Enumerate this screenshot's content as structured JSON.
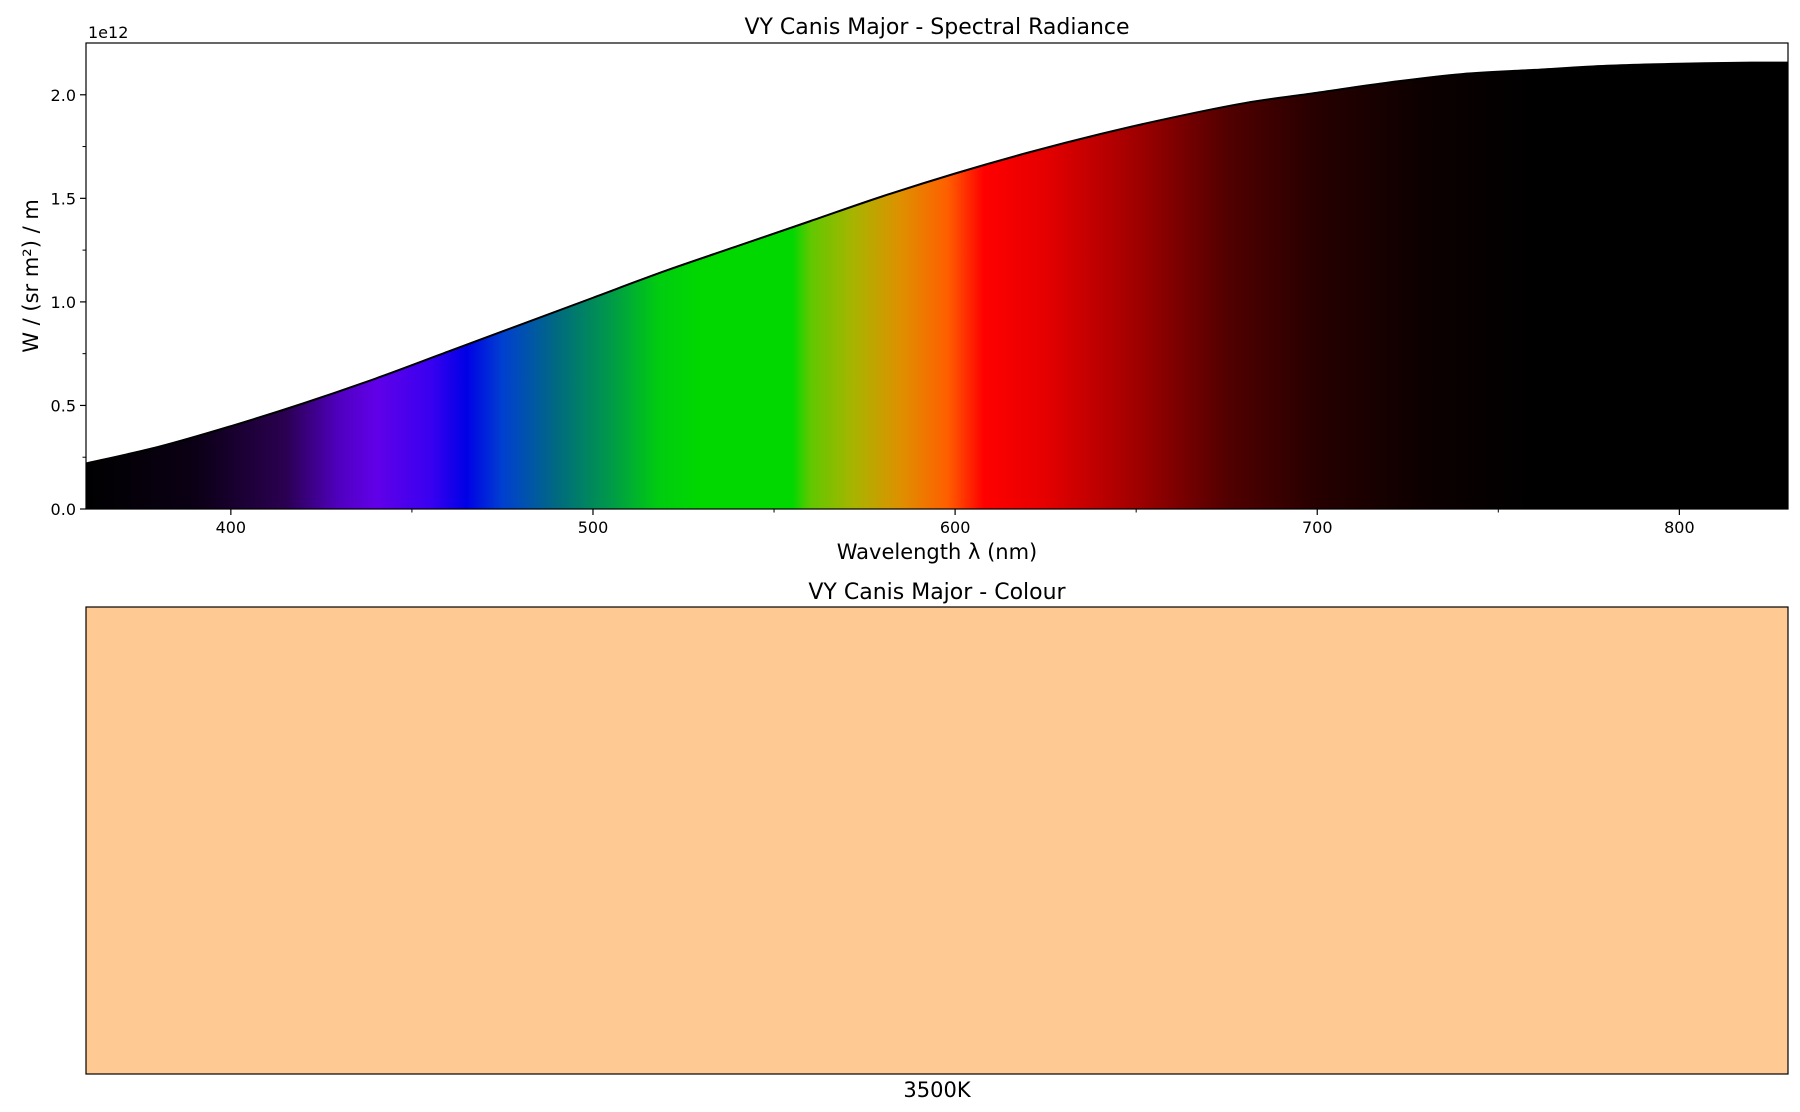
{
  "chart_data": [
    {
      "type": "area",
      "title": "VY Canis Major - Spectral Radiance",
      "xlabel": "Wavelength λ (nm)",
      "ylabel": "W / (sr m²) / m",
      "y_offset_label": "1e12",
      "xlim": [
        360,
        830
      ],
      "ylim": [
        0,
        2250000000000.0
      ],
      "x_ticks": [
        400,
        500,
        600,
        700,
        800
      ],
      "y_ticks": [
        0,
        500000000000.0,
        1000000000000.0,
        1500000000000.0,
        2000000000000.0
      ],
      "x_tick_labels": [
        "400",
        "500",
        "600",
        "700",
        "800"
      ],
      "y_tick_labels": [
        "0.0",
        "0.5",
        "1.0",
        "1.5",
        "2.0"
      ],
      "grid": false,
      "fill": "visible spectrum colour gradient",
      "series": [
        {
          "x": [
            360,
            380,
            400,
            420,
            440,
            460,
            480,
            500,
            520,
            540,
            560,
            580,
            600,
            620,
            640,
            660,
            680,
            700,
            720,
            740,
            760,
            780,
            800,
            820,
            830
          ],
          "y": [
            220000000000.0,
            300000000000.0,
            400000000000.0,
            510000000000.0,
            630000000000.0,
            760000000000.0,
            890000000000.0,
            1020000000000.0,
            1150000000000.0,
            1270000000000.0,
            1390000000000.0,
            1510000000000.0,
            1620000000000.0,
            1720000000000.0,
            1810000000000.0,
            1890000000000.0,
            1960000000000.0,
            2010000000000.0,
            2060000000000.0,
            2100000000000.0,
            2120000000000.0,
            2140000000000.0,
            2150000000000.0,
            2155000000000.0,
            2155000000000.0
          ]
        }
      ],
      "spectrum_stops": [
        {
          "nm": 360,
          "color": "#000000"
        },
        {
          "nm": 390,
          "color": "#0b0015"
        },
        {
          "nm": 415,
          "color": "#2a0050"
        },
        {
          "nm": 430,
          "color": "#5000c0"
        },
        {
          "nm": 440,
          "color": "#6100e8"
        },
        {
          "nm": 455,
          "color": "#3a00f0"
        },
        {
          "nm": 465,
          "color": "#0000e6"
        },
        {
          "nm": 475,
          "color": "#0040d0"
        },
        {
          "nm": 490,
          "color": "#006a80"
        },
        {
          "nm": 505,
          "color": "#009a48"
        },
        {
          "nm": 518,
          "color": "#00cc10"
        },
        {
          "nm": 530,
          "color": "#00d800"
        },
        {
          "nm": 555,
          "color": "#00d800"
        },
        {
          "nm": 560,
          "color": "#60c800"
        },
        {
          "nm": 572,
          "color": "#a8b400"
        },
        {
          "nm": 585,
          "color": "#de9000"
        },
        {
          "nm": 598,
          "color": "#ff5e00"
        },
        {
          "nm": 608,
          "color": "#ff0000"
        },
        {
          "nm": 625,
          "color": "#e50000"
        },
        {
          "nm": 650,
          "color": "#a00000"
        },
        {
          "nm": 675,
          "color": "#520000"
        },
        {
          "nm": 700,
          "color": "#260000"
        },
        {
          "nm": 730,
          "color": "#0c0000"
        },
        {
          "nm": 760,
          "color": "#000000"
        },
        {
          "nm": 830,
          "color": "#000000"
        }
      ]
    },
    {
      "type": "swatch",
      "title": "VY Canis Major - Colour",
      "xlabel": "3500K",
      "color": "#ffc993"
    }
  ]
}
